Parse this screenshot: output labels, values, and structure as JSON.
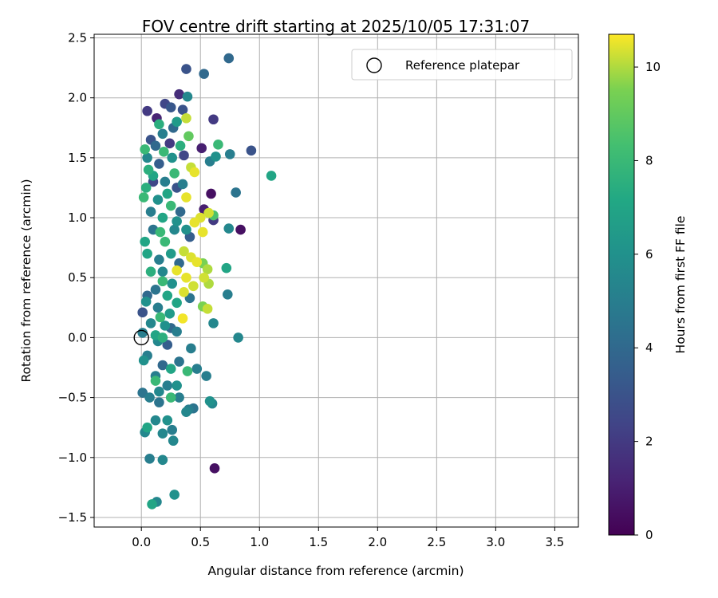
{
  "chart_data": {
    "type": "scatter",
    "title": "FOV centre drift starting at 2025/10/05 17:31:07",
    "xlabel": "Angular distance from reference (arcmin)",
    "ylabel": "Rotation from reference (arcmin)",
    "xlim": [
      -0.4,
      3.7
    ],
    "ylim": [
      -1.58,
      2.53
    ],
    "xticks": [
      0.0,
      0.5,
      1.0,
      1.5,
      2.0,
      2.5,
      3.0,
      3.5
    ],
    "xtick_labels": [
      "0.0",
      "0.5",
      "1.0",
      "1.5",
      "2.0",
      "2.5",
      "3.0",
      "3.5"
    ],
    "yticks": [
      -1.5,
      -1.0,
      -0.5,
      0.0,
      0.5,
      1.0,
      1.5,
      2.0,
      2.5
    ],
    "ytick_labels": [
      "−1.5",
      "−1.0",
      "−0.5",
      "0.0",
      "0.5",
      "1.0",
      "1.5",
      "2.0",
      "2.5"
    ],
    "grid": true,
    "legend": {
      "label": "Reference platepar",
      "placement": "top-right"
    },
    "reference_point": {
      "x": 0.0,
      "y": 0.0
    },
    "colorbar": {
      "label": "Hours from first FF file",
      "range": [
        0,
        10.7
      ],
      "ticks": [
        0,
        2,
        4,
        6,
        8,
        10
      ],
      "tick_labels": [
        "0",
        "2",
        "4",
        "6",
        "8",
        "10"
      ],
      "colormap": "viridis"
    },
    "series": [
      {
        "name": "FOV centre positions",
        "points": [
          {
            "x": 0.38,
            "y": 2.24,
            "h": 3.0
          },
          {
            "x": 0.53,
            "y": 2.2,
            "h": 4.0
          },
          {
            "x": 0.74,
            "y": 2.33,
            "h": 4.0
          },
          {
            "x": 0.32,
            "y": 2.03,
            "h": 1.5
          },
          {
            "x": 0.39,
            "y": 2.01,
            "h": 5.5
          },
          {
            "x": 0.2,
            "y": 1.95,
            "h": 2.5
          },
          {
            "x": 0.25,
            "y": 1.92,
            "h": 3.2
          },
          {
            "x": 0.05,
            "y": 1.89,
            "h": 2.0
          },
          {
            "x": 0.13,
            "y": 1.83,
            "h": 1.2
          },
          {
            "x": 0.35,
            "y": 1.9,
            "h": 3.0
          },
          {
            "x": 0.61,
            "y": 1.82,
            "h": 2.0
          },
          {
            "x": 0.38,
            "y": 1.83,
            "h": 10.2
          },
          {
            "x": 0.15,
            "y": 1.78,
            "h": 7.5
          },
          {
            "x": 0.27,
            "y": 1.75,
            "h": 4.0
          },
          {
            "x": 0.4,
            "y": 1.68,
            "h": 9.0
          },
          {
            "x": 0.65,
            "y": 1.61,
            "h": 8.0
          },
          {
            "x": 0.93,
            "y": 1.56,
            "h": 3.0
          },
          {
            "x": 0.51,
            "y": 1.58,
            "h": 1.0
          },
          {
            "x": 0.75,
            "y": 1.53,
            "h": 5.0
          },
          {
            "x": 0.63,
            "y": 1.51,
            "h": 6.0
          },
          {
            "x": 0.58,
            "y": 1.47,
            "h": 5.0
          },
          {
            "x": 0.19,
            "y": 1.55,
            "h": 8.0
          },
          {
            "x": 0.03,
            "y": 1.57,
            "h": 8.0
          },
          {
            "x": 0.42,
            "y": 1.42,
            "h": 10.2
          },
          {
            "x": 0.45,
            "y": 1.38,
            "h": 10.5
          },
          {
            "x": 0.28,
            "y": 1.37,
            "h": 8.0
          },
          {
            "x": 1.1,
            "y": 1.35,
            "h": 7.0
          },
          {
            "x": 0.1,
            "y": 1.3,
            "h": 2.5
          },
          {
            "x": 0.35,
            "y": 1.28,
            "h": 5.0
          },
          {
            "x": 0.06,
            "y": 1.4,
            "h": 7.5
          },
          {
            "x": 0.59,
            "y": 1.2,
            "h": 0.5
          },
          {
            "x": 0.8,
            "y": 1.21,
            "h": 4.5
          },
          {
            "x": 0.38,
            "y": 1.17,
            "h": 10.5
          },
          {
            "x": 0.02,
            "y": 1.17,
            "h": 8.0
          },
          {
            "x": 0.22,
            "y": 1.2,
            "h": 7.0
          },
          {
            "x": 0.53,
            "y": 1.07,
            "h": 1.0
          },
          {
            "x": 0.57,
            "y": 1.04,
            "h": 10.3
          },
          {
            "x": 0.61,
            "y": 1.02,
            "h": 8.5
          },
          {
            "x": 0.5,
            "y": 1.0,
            "h": 10.4
          },
          {
            "x": 0.61,
            "y": 0.98,
            "h": 2.0
          },
          {
            "x": 0.45,
            "y": 0.96,
            "h": 10.5
          },
          {
            "x": 0.3,
            "y": 0.97,
            "h": 6.0
          },
          {
            "x": 0.84,
            "y": 0.9,
            "h": 0.5
          },
          {
            "x": 0.74,
            "y": 0.91,
            "h": 5.5
          },
          {
            "x": 0.52,
            "y": 0.88,
            "h": 10.5
          },
          {
            "x": 0.41,
            "y": 0.84,
            "h": 3.5
          },
          {
            "x": 0.16,
            "y": 0.88,
            "h": 8.0
          },
          {
            "x": 0.03,
            "y": 0.8,
            "h": 7.0
          },
          {
            "x": 0.36,
            "y": 0.72,
            "h": 10.2
          },
          {
            "x": 0.42,
            "y": 0.67,
            "h": 10.4
          },
          {
            "x": 0.47,
            "y": 0.63,
            "h": 10.5
          },
          {
            "x": 0.52,
            "y": 0.62,
            "h": 9.5
          },
          {
            "x": 0.56,
            "y": 0.57,
            "h": 10.0
          },
          {
            "x": 0.72,
            "y": 0.58,
            "h": 7.0
          },
          {
            "x": 0.3,
            "y": 0.56,
            "h": 10.5
          },
          {
            "x": 0.38,
            "y": 0.5,
            "h": 10.5
          },
          {
            "x": 0.53,
            "y": 0.5,
            "h": 10.3
          },
          {
            "x": 0.57,
            "y": 0.45,
            "h": 10.0
          },
          {
            "x": 0.18,
            "y": 0.47,
            "h": 8.0
          },
          {
            "x": 0.44,
            "y": 0.43,
            "h": 10.3
          },
          {
            "x": 0.36,
            "y": 0.38,
            "h": 10.4
          },
          {
            "x": 0.73,
            "y": 0.36,
            "h": 5.0
          },
          {
            "x": 0.41,
            "y": 0.33,
            "h": 4.5
          },
          {
            "x": 0.05,
            "y": 0.35,
            "h": 4.0
          },
          {
            "x": 0.3,
            "y": 0.29,
            "h": 7.0
          },
          {
            "x": 0.52,
            "y": 0.26,
            "h": 9.5
          },
          {
            "x": 0.56,
            "y": 0.24,
            "h": 10.2
          },
          {
            "x": 0.01,
            "y": 0.21,
            "h": 3.0
          },
          {
            "x": 0.35,
            "y": 0.16,
            "h": 10.6
          },
          {
            "x": 0.61,
            "y": 0.12,
            "h": 5.5
          },
          {
            "x": 0.16,
            "y": 0.17,
            "h": 8.0
          },
          {
            "x": 0.25,
            "y": 0.08,
            "h": 4.0
          },
          {
            "x": 0.82,
            "y": 0.0,
            "h": 5.5
          },
          {
            "x": 0.18,
            "y": 0.0,
            "h": 7.5
          },
          {
            "x": 0.01,
            "y": 0.04,
            "h": 5.0
          },
          {
            "x": 0.14,
            "y": -0.03,
            "h": 5.5
          },
          {
            "x": 0.22,
            "y": -0.06,
            "h": 3.5
          },
          {
            "x": 0.42,
            "y": -0.09,
            "h": 5.0
          },
          {
            "x": 0.05,
            "y": -0.15,
            "h": 5.0
          },
          {
            "x": 0.02,
            "y": -0.19,
            "h": 6.0
          },
          {
            "x": 0.32,
            "y": -0.2,
            "h": 4.5
          },
          {
            "x": 0.18,
            "y": -0.23,
            "h": 4.0
          },
          {
            "x": 0.25,
            "y": -0.26,
            "h": 7.0
          },
          {
            "x": 0.39,
            "y": -0.28,
            "h": 8.0
          },
          {
            "x": 0.47,
            "y": -0.26,
            "h": 5.0
          },
          {
            "x": 0.12,
            "y": -0.32,
            "h": 5.0
          },
          {
            "x": 0.55,
            "y": -0.32,
            "h": 5.0
          },
          {
            "x": 0.12,
            "y": -0.36,
            "h": 8.0
          },
          {
            "x": 0.22,
            "y": -0.4,
            "h": 5.0
          },
          {
            "x": 0.3,
            "y": -0.4,
            "h": 6.0
          },
          {
            "x": 0.15,
            "y": -0.45,
            "h": 5.5
          },
          {
            "x": 0.01,
            "y": -0.46,
            "h": 4.5
          },
          {
            "x": 0.58,
            "y": -0.53,
            "h": 6.0
          },
          {
            "x": 0.25,
            "y": -0.5,
            "h": 8.0
          },
          {
            "x": 0.07,
            "y": -0.5,
            "h": 5.0
          },
          {
            "x": 0.32,
            "y": -0.5,
            "h": 5.0
          },
          {
            "x": 0.15,
            "y": -0.54,
            "h": 4.5
          },
          {
            "x": 0.6,
            "y": -0.55,
            "h": 5.5
          },
          {
            "x": 0.4,
            "y": -0.6,
            "h": 5.0
          },
          {
            "x": 0.44,
            "y": -0.59,
            "h": 4.5
          },
          {
            "x": 0.38,
            "y": -0.62,
            "h": 5.5
          },
          {
            "x": 0.12,
            "y": -0.69,
            "h": 5.5
          },
          {
            "x": 0.22,
            "y": -0.69,
            "h": 6.0
          },
          {
            "x": 0.05,
            "y": -0.75,
            "h": 7.0
          },
          {
            "x": 0.03,
            "y": -0.79,
            "h": 5.5
          },
          {
            "x": 0.26,
            "y": -0.77,
            "h": 5.0
          },
          {
            "x": 0.18,
            "y": -0.8,
            "h": 5.5
          },
          {
            "x": 0.27,
            "y": -0.86,
            "h": 5.5
          },
          {
            "x": 0.07,
            "y": -1.01,
            "h": 5.0
          },
          {
            "x": 0.18,
            "y": -1.02,
            "h": 5.5
          },
          {
            "x": 0.62,
            "y": -1.09,
            "h": 0.5
          },
          {
            "x": 0.28,
            "y": -1.31,
            "h": 6.0
          },
          {
            "x": 0.13,
            "y": -1.37,
            "h": 5.5
          },
          {
            "x": 0.09,
            "y": -1.39,
            "h": 7.0
          },
          {
            "x": 0.08,
            "y": 1.65,
            "h": 3.0
          },
          {
            "x": 0.18,
            "y": 1.7,
            "h": 5.0
          },
          {
            "x": 0.3,
            "y": 1.8,
            "h": 6.5
          },
          {
            "x": 0.12,
            "y": 1.6,
            "h": 4.0
          },
          {
            "x": 0.24,
            "y": 1.62,
            "h": 2.0
          },
          {
            "x": 0.33,
            "y": 1.6,
            "h": 7.5
          },
          {
            "x": 0.05,
            "y": 1.5,
            "h": 5.5
          },
          {
            "x": 0.15,
            "y": 1.45,
            "h": 3.5
          },
          {
            "x": 0.26,
            "y": 1.5,
            "h": 6.0
          },
          {
            "x": 0.36,
            "y": 1.52,
            "h": 2.5
          },
          {
            "x": 0.1,
            "y": 1.35,
            "h": 7.0
          },
          {
            "x": 0.2,
            "y": 1.3,
            "h": 5.0
          },
          {
            "x": 0.3,
            "y": 1.25,
            "h": 3.0
          },
          {
            "x": 0.04,
            "y": 1.25,
            "h": 7.5
          },
          {
            "x": 0.14,
            "y": 1.15,
            "h": 6.0
          },
          {
            "x": 0.25,
            "y": 1.1,
            "h": 8.0
          },
          {
            "x": 0.33,
            "y": 1.05,
            "h": 4.0
          },
          {
            "x": 0.08,
            "y": 1.05,
            "h": 5.0
          },
          {
            "x": 0.18,
            "y": 1.0,
            "h": 7.0
          },
          {
            "x": 0.28,
            "y": 0.9,
            "h": 5.5
          },
          {
            "x": 0.38,
            "y": 0.9,
            "h": 6.0
          },
          {
            "x": 0.1,
            "y": 0.9,
            "h": 4.5
          },
          {
            "x": 0.2,
            "y": 0.8,
            "h": 8.0
          },
          {
            "x": 0.05,
            "y": 0.7,
            "h": 7.0
          },
          {
            "x": 0.15,
            "y": 0.65,
            "h": 5.0
          },
          {
            "x": 0.25,
            "y": 0.7,
            "h": 6.5
          },
          {
            "x": 0.32,
            "y": 0.62,
            "h": 4.0
          },
          {
            "x": 0.08,
            "y": 0.55,
            "h": 7.5
          },
          {
            "x": 0.18,
            "y": 0.55,
            "h": 5.5
          },
          {
            "x": 0.26,
            "y": 0.45,
            "h": 6.0
          },
          {
            "x": 0.12,
            "y": 0.4,
            "h": 4.5
          },
          {
            "x": 0.22,
            "y": 0.35,
            "h": 7.0
          },
          {
            "x": 0.04,
            "y": 0.3,
            "h": 6.0
          },
          {
            "x": 0.14,
            "y": 0.25,
            "h": 5.0
          },
          {
            "x": 0.24,
            "y": 0.2,
            "h": 6.5
          },
          {
            "x": 0.08,
            "y": 0.12,
            "h": 5.5
          },
          {
            "x": 0.2,
            "y": 0.1,
            "h": 6.0
          },
          {
            "x": 0.3,
            "y": 0.05,
            "h": 5.0
          },
          {
            "x": 0.12,
            "y": 0.02,
            "h": 7.0
          }
        ]
      }
    ]
  }
}
